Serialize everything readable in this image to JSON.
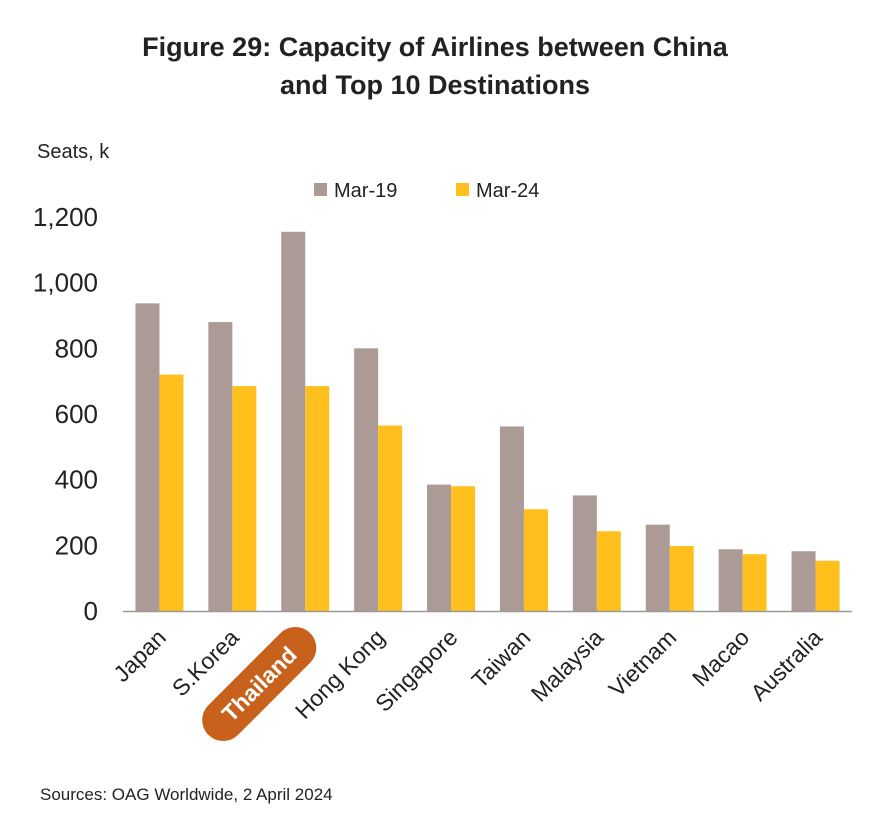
{
  "title_line1": "Figure 29: Capacity of Airlines between China",
  "title_line2": "and Top 10 Destinations",
  "source": "Sources: OAG Worldwide, 2 April 2024",
  "colors": {
    "mar19": "#ab9a96",
    "mar24": "#ffc01d",
    "highlight": "#c8611c",
    "axis": "#999999"
  },
  "chart_data": {
    "type": "bar",
    "title": "Figure 29: Capacity of Airlines between China and Top 10 Destinations",
    "ylabel": "Seats, k",
    "xlabel": "",
    "ylim": [
      0,
      1200
    ],
    "yticks": [
      "0",
      "200",
      "400",
      "600",
      "800",
      "1,000",
      "1,200"
    ],
    "ytick_values": [
      0,
      200,
      400,
      600,
      800,
      1000,
      1200
    ],
    "legend_position": "top-center",
    "grid": false,
    "highlight_category": "Thailand",
    "categories": [
      "Japan",
      "S.Korea",
      "Thailand",
      "Hong Kong",
      "Singapore",
      "Taiwan",
      "Malaysia",
      "Vietnam",
      "Macao",
      "Australia"
    ],
    "series": [
      {
        "name": "Mar-19",
        "values": [
          937,
          880,
          1155,
          800,
          385,
          562,
          352,
          263,
          188,
          182
        ]
      },
      {
        "name": "Mar-24",
        "values": [
          720,
          685,
          685,
          565,
          380,
          310,
          243,
          198,
          173,
          153
        ]
      }
    ]
  }
}
